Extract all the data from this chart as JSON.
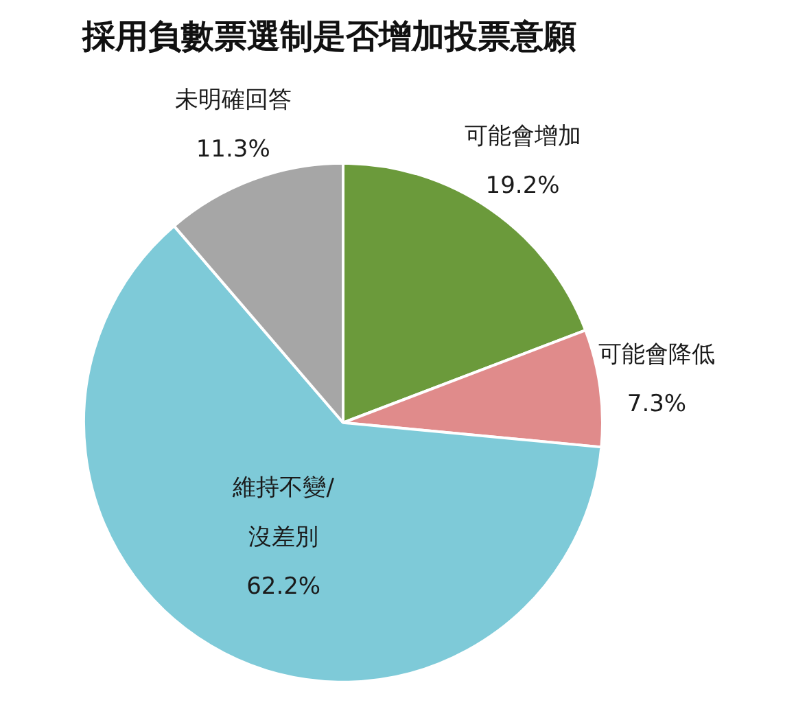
{
  "chart_data": {
    "type": "pie",
    "title": "採用負數票選制是否增加投票意願",
    "categories": [
      "可能會增加",
      "可能會降低",
      "維持不變/沒差別",
      "未明確回答"
    ],
    "values": [
      19.2,
      7.3,
      62.2,
      11.3
    ],
    "value_labels": [
      "19.2%",
      "7.3%",
      "62.2%",
      "11.3%"
    ],
    "colors": [
      "#6b9a3b",
      "#e08b8b",
      "#7ecad8",
      "#a6a6a6"
    ],
    "legend": false
  }
}
